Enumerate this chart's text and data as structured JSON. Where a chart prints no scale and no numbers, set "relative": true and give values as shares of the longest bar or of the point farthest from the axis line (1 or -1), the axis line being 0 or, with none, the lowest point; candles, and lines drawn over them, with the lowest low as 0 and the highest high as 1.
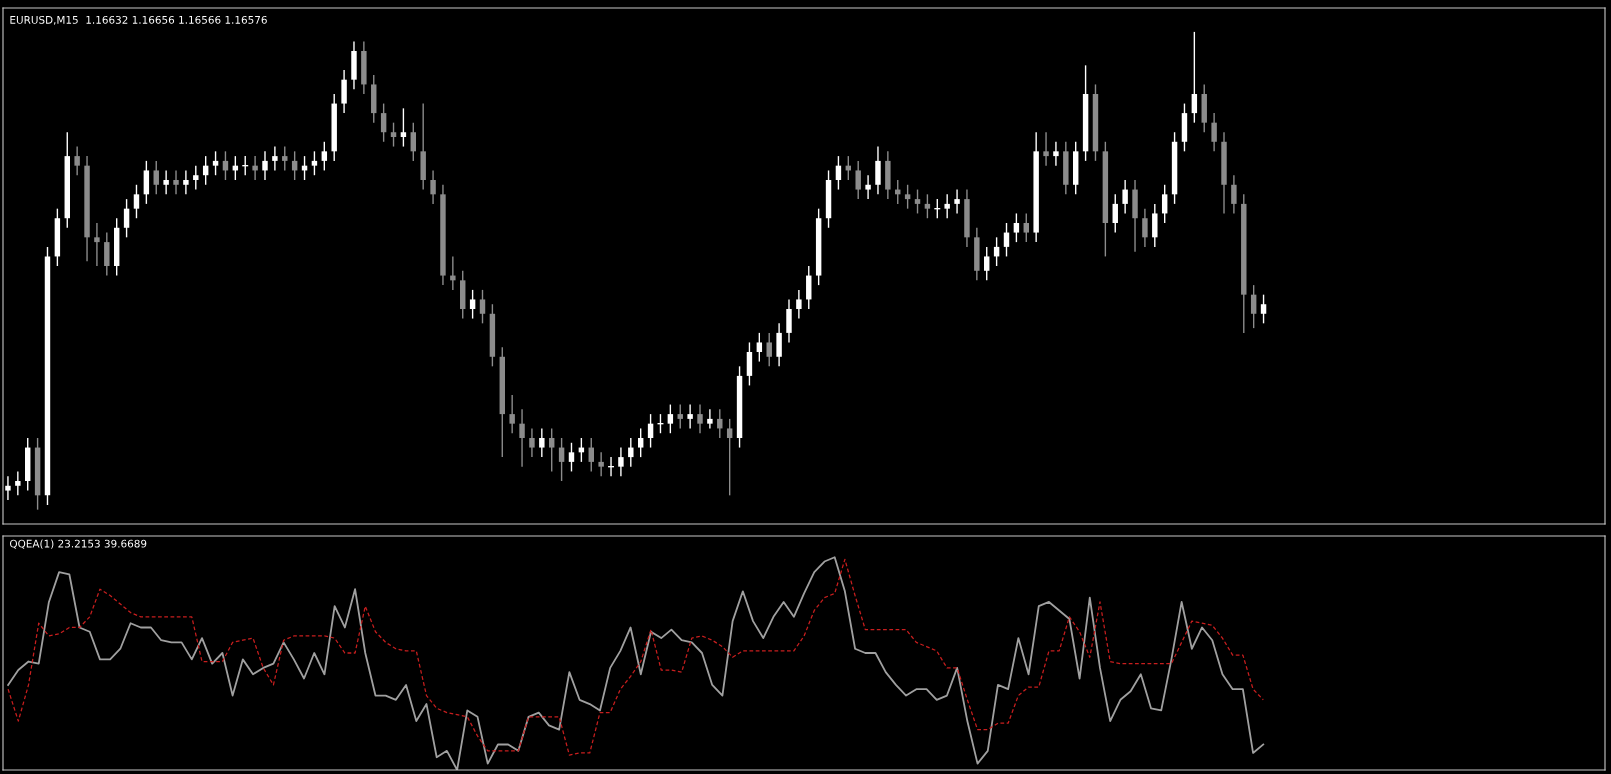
{
  "chart_data": [
    {
      "type": "candlestick",
      "title": "EURUSD,M15  1.16632 1.16656 1.16566 1.16576",
      "relative": true,
      "colors": [
        "#ffffff",
        "#ffffff",
        "#ffffff",
        "#8c8c8c",
        "#ffffff",
        "#ffffff",
        "#ffffff",
        "#8c8c8c",
        "#8c8c8c",
        "#8c8c8c",
        "#8c8c8c",
        "#ffffff",
        "#ffffff",
        "#ffffff",
        "#ffffff",
        "#8c8c8c",
        "#ffffff",
        "#8c8c8c",
        "#ffffff",
        "#ffffff",
        "#ffffff",
        "#ffffff",
        "#8c8c8c",
        "#ffffff",
        "#ffffff",
        "#8c8c8c",
        "#ffffff",
        "#ffffff",
        "#8c8c8c",
        "#8c8c8c",
        "#ffffff",
        "#ffffff",
        "#ffffff",
        "#ffffff",
        "#ffffff",
        "#ffffff",
        "#8c8c8c",
        "#8c8c8c",
        "#8c8c8c",
        "#8c8c8c",
        "#ffffff",
        "#8c8c8c",
        "#8c8c8c",
        "#8c8c8c",
        "#8c8c8c",
        "#8c8c8c",
        "#8c8c8c",
        "#ffffff",
        "#8c8c8c",
        "#8c8c8c",
        "#8c8c8c",
        "#8c8c8c",
        "#8c8c8c",
        "#8c8c8c",
        "#ffffff",
        "#8c8c8c",
        "#8c8c8c",
        "#ffffff",
        "#ffffff",
        "#8c8c8c",
        "#8c8c8c",
        "#ffffff",
        "#ffffff",
        "#ffffff",
        "#ffffff",
        "#ffffff",
        "#ffffff",
        "#ffffff",
        "#8c8c8c",
        "#ffffff",
        "#8c8c8c",
        "#ffffff",
        "#8c8c8c",
        "#8c8c8c",
        "#ffffff",
        "#ffffff",
        "#ffffff",
        "#8c8c8c",
        "#ffffff",
        "#ffffff",
        "#ffffff",
        "#ffffff",
        "#ffffff",
        "#ffffff",
        "#ffffff",
        "#8c8c8c",
        "#8c8c8c",
        "#ffffff",
        "#ffffff",
        "#8c8c8c",
        "#8c8c8c",
        "#8c8c8c",
        "#8c8c8c",
        "#8c8c8c",
        "#ffffff",
        "#ffffff",
        "#ffffff",
        "#8c8c8c",
        "#8c8c8c",
        "#ffffff",
        "#ffffff",
        "#ffffff",
        "#ffffff",
        "#8c8c8c",
        "#ffffff",
        "#8c8c8c",
        "#ffffff",
        "#8c8c8c",
        "#ffffff",
        "#ffffff",
        "#8c8c8c",
        "#8c8c8c",
        "#ffffff",
        "#ffffff",
        "#8c8c8c",
        "#8c8c8c",
        "#ffffff",
        "#ffffff",
        "#ffffff",
        "#ffffff",
        "#ffffff",
        "#8c8c8c",
        "#8c8c8c",
        "#8c8c8c",
        "#8c8c8c",
        "#8c8c8c",
        "#8c8c8c",
        "#ffffff"
      ],
      "categories": [
        null,
        null,
        null,
        null,
        null,
        null,
        null,
        null,
        null,
        null,
        null,
        null,
        null,
        null,
        null,
        null,
        null,
        null,
        null,
        null,
        null,
        null,
        null,
        null,
        null,
        null,
        null,
        null,
        null,
        null,
        null,
        null,
        null,
        null,
        null,
        null,
        null,
        null,
        null,
        null,
        null,
        null,
        null,
        null,
        null,
        null,
        null,
        null,
        null,
        null,
        null,
        null,
        null,
        null,
        null,
        null,
        null,
        null,
        null,
        null,
        null,
        null,
        null,
        null,
        null,
        null,
        null,
        null,
        null,
        null,
        null,
        null,
        null,
        null,
        null,
        null,
        null,
        null,
        null,
        null,
        null,
        null,
        null,
        null,
        null,
        null,
        null,
        null,
        null,
        null,
        null,
        null,
        null,
        null,
        null,
        null,
        null,
        null,
        null,
        null,
        null,
        null,
        null,
        null,
        null,
        null,
        null,
        null,
        null,
        null,
        null,
        null,
        null,
        null,
        null,
        null,
        null,
        null,
        null,
        null,
        null,
        null,
        null,
        null,
        null,
        null,
        null,
        null
      ],
      "ohlc": [
        [
          0.04,
          0.07,
          0.02,
          0.05
        ],
        [
          0.05,
          0.08,
          0.03,
          0.06
        ],
        [
          0.06,
          0.15,
          0.04,
          0.13
        ],
        [
          0.13,
          0.15,
          0.0,
          0.03
        ],
        [
          0.03,
          0.55,
          0.01,
          0.53
        ],
        [
          0.53,
          0.63,
          0.51,
          0.61
        ],
        [
          0.61,
          0.79,
          0.59,
          0.74
        ],
        [
          0.74,
          0.76,
          0.7,
          0.72
        ],
        [
          0.72,
          0.74,
          0.52,
          0.57
        ],
        [
          0.57,
          0.6,
          0.51,
          0.56
        ],
        [
          0.56,
          0.58,
          0.49,
          0.51
        ],
        [
          0.51,
          0.61,
          0.49,
          0.59
        ],
        [
          0.59,
          0.65,
          0.57,
          0.63
        ],
        [
          0.63,
          0.68,
          0.61,
          0.66
        ],
        [
          0.66,
          0.73,
          0.64,
          0.71
        ],
        [
          0.71,
          0.73,
          0.66,
          0.68
        ],
        [
          0.68,
          0.71,
          0.66,
          0.69
        ],
        [
          0.69,
          0.71,
          0.66,
          0.68
        ],
        [
          0.68,
          0.71,
          0.66,
          0.69
        ],
        [
          0.69,
          0.72,
          0.67,
          0.7
        ],
        [
          0.7,
          0.74,
          0.68,
          0.72
        ],
        [
          0.72,
          0.75,
          0.7,
          0.73
        ],
        [
          0.73,
          0.75,
          0.69,
          0.71
        ],
        [
          0.71,
          0.74,
          0.69,
          0.72
        ],
        [
          0.72,
          0.74,
          0.7,
          0.72
        ],
        [
          0.72,
          0.74,
          0.69,
          0.71
        ],
        [
          0.71,
          0.75,
          0.69,
          0.73
        ],
        [
          0.73,
          0.76,
          0.71,
          0.74
        ],
        [
          0.74,
          0.76,
          0.71,
          0.73
        ],
        [
          0.73,
          0.75,
          0.69,
          0.71
        ],
        [
          0.71,
          0.74,
          0.69,
          0.72
        ],
        [
          0.72,
          0.75,
          0.7,
          0.73
        ],
        [
          0.73,
          0.77,
          0.71,
          0.75
        ],
        [
          0.75,
          0.87,
          0.73,
          0.85
        ],
        [
          0.85,
          0.92,
          0.83,
          0.9
        ],
        [
          0.9,
          0.98,
          0.88,
          0.96
        ],
        [
          0.96,
          0.98,
          0.87,
          0.89
        ],
        [
          0.89,
          0.91,
          0.81,
          0.83
        ],
        [
          0.83,
          0.85,
          0.77,
          0.79
        ],
        [
          0.79,
          0.81,
          0.76,
          0.78
        ],
        [
          0.78,
          0.84,
          0.76,
          0.79
        ],
        [
          0.79,
          0.81,
          0.73,
          0.75
        ],
        [
          0.75,
          0.85,
          0.67,
          0.69
        ],
        [
          0.69,
          0.71,
          0.64,
          0.66
        ],
        [
          0.66,
          0.68,
          0.47,
          0.49
        ],
        [
          0.49,
          0.53,
          0.46,
          0.48
        ],
        [
          0.48,
          0.5,
          0.4,
          0.42
        ],
        [
          0.42,
          0.46,
          0.4,
          0.44
        ],
        [
          0.44,
          0.46,
          0.39,
          0.41
        ],
        [
          0.41,
          0.43,
          0.3,
          0.32
        ],
        [
          0.32,
          0.34,
          0.11,
          0.2
        ],
        [
          0.2,
          0.24,
          0.16,
          0.18
        ],
        [
          0.18,
          0.21,
          0.09,
          0.15
        ],
        [
          0.15,
          0.17,
          0.11,
          0.13
        ],
        [
          0.13,
          0.17,
          0.11,
          0.15
        ],
        [
          0.15,
          0.17,
          0.08,
          0.13
        ],
        [
          0.13,
          0.15,
          0.06,
          0.1
        ],
        [
          0.1,
          0.14,
          0.08,
          0.12
        ],
        [
          0.12,
          0.15,
          0.1,
          0.13
        ],
        [
          0.13,
          0.15,
          0.08,
          0.1
        ],
        [
          0.1,
          0.12,
          0.07,
          0.09
        ],
        [
          0.09,
          0.11,
          0.07,
          0.09
        ],
        [
          0.09,
          0.13,
          0.07,
          0.11
        ],
        [
          0.11,
          0.15,
          0.09,
          0.13
        ],
        [
          0.13,
          0.17,
          0.11,
          0.15
        ],
        [
          0.15,
          0.2,
          0.13,
          0.18
        ],
        [
          0.18,
          0.2,
          0.16,
          0.18
        ],
        [
          0.18,
          0.22,
          0.16,
          0.2
        ],
        [
          0.2,
          0.22,
          0.17,
          0.19
        ],
        [
          0.19,
          0.22,
          0.17,
          0.2
        ],
        [
          0.2,
          0.22,
          0.16,
          0.18
        ],
        [
          0.18,
          0.21,
          0.17,
          0.19
        ],
        [
          0.19,
          0.21,
          0.15,
          0.17
        ],
        [
          0.17,
          0.19,
          0.03,
          0.15
        ],
        [
          0.15,
          0.3,
          0.13,
          0.28
        ],
        [
          0.28,
          0.35,
          0.26,
          0.33
        ],
        [
          0.33,
          0.37,
          0.31,
          0.35
        ],
        [
          0.35,
          0.37,
          0.3,
          0.32
        ],
        [
          0.32,
          0.39,
          0.3,
          0.37
        ],
        [
          0.37,
          0.44,
          0.35,
          0.42
        ],
        [
          0.42,
          0.46,
          0.4,
          0.44
        ],
        [
          0.44,
          0.51,
          0.42,
          0.49
        ],
        [
          0.49,
          0.63,
          0.47,
          0.61
        ],
        [
          0.61,
          0.71,
          0.59,
          0.69
        ],
        [
          0.69,
          0.74,
          0.67,
          0.72
        ],
        [
          0.72,
          0.74,
          0.69,
          0.71
        ],
        [
          0.71,
          0.73,
          0.65,
          0.67
        ],
        [
          0.67,
          0.7,
          0.65,
          0.68
        ],
        [
          0.68,
          0.76,
          0.66,
          0.73
        ],
        [
          0.73,
          0.75,
          0.65,
          0.67
        ],
        [
          0.67,
          0.69,
          0.64,
          0.66
        ],
        [
          0.66,
          0.68,
          0.63,
          0.65
        ],
        [
          0.65,
          0.67,
          0.62,
          0.64
        ],
        [
          0.64,
          0.66,
          0.61,
          0.63
        ],
        [
          0.63,
          0.65,
          0.61,
          0.63
        ],
        [
          0.63,
          0.66,
          0.61,
          0.64
        ],
        [
          0.64,
          0.67,
          0.62,
          0.65
        ],
        [
          0.65,
          0.67,
          0.55,
          0.57
        ],
        [
          0.57,
          0.59,
          0.48,
          0.5
        ],
        [
          0.5,
          0.55,
          0.48,
          0.53
        ],
        [
          0.53,
          0.57,
          0.51,
          0.55
        ],
        [
          0.55,
          0.6,
          0.53,
          0.58
        ],
        [
          0.58,
          0.62,
          0.56,
          0.6
        ],
        [
          0.6,
          0.62,
          0.56,
          0.58
        ],
        [
          0.58,
          0.79,
          0.56,
          0.75
        ],
        [
          0.75,
          0.79,
          0.72,
          0.74
        ],
        [
          0.74,
          0.77,
          0.72,
          0.75
        ],
        [
          0.75,
          0.77,
          0.66,
          0.68
        ],
        [
          0.68,
          0.77,
          0.66,
          0.75
        ],
        [
          0.75,
          0.93,
          0.73,
          0.87
        ],
        [
          0.87,
          0.89,
          0.73,
          0.75
        ],
        [
          0.75,
          0.77,
          0.53,
          0.6
        ],
        [
          0.6,
          0.66,
          0.58,
          0.64
        ],
        [
          0.64,
          0.69,
          0.62,
          0.67
        ],
        [
          0.67,
          0.69,
          0.54,
          0.61
        ],
        [
          0.61,
          0.63,
          0.55,
          0.57
        ],
        [
          0.57,
          0.64,
          0.55,
          0.62
        ],
        [
          0.62,
          0.68,
          0.6,
          0.66
        ],
        [
          0.66,
          0.79,
          0.64,
          0.77
        ],
        [
          0.77,
          0.85,
          0.75,
          0.83
        ],
        [
          0.83,
          1.0,
          0.81,
          0.87
        ],
        [
          0.87,
          0.89,
          0.79,
          0.81
        ],
        [
          0.81,
          0.83,
          0.75,
          0.77
        ],
        [
          0.77,
          0.79,
          0.62,
          0.68
        ],
        [
          0.68,
          0.7,
          0.62,
          0.64
        ],
        [
          0.64,
          0.66,
          0.37,
          0.45
        ],
        [
          0.45,
          0.47,
          0.38,
          0.41
        ],
        [
          0.41,
          0.45,
          0.39,
          0.43
        ]
      ]
    },
    {
      "type": "line",
      "title": "QQEA(1) 23.2153 39.6689",
      "relative": true,
      "categories": [
        null,
        null,
        null,
        null,
        null,
        null,
        null,
        null,
        null,
        null,
        null,
        null,
        null,
        null,
        null,
        null,
        null,
        null,
        null,
        null,
        null,
        null,
        null,
        null,
        null,
        null,
        null,
        null,
        null,
        null,
        null,
        null,
        null,
        null,
        null,
        null,
        null,
        null,
        null,
        null,
        null,
        null,
        null,
        null,
        null,
        null,
        null,
        null,
        null,
        null,
        null,
        null,
        null,
        null,
        null,
        null,
        null,
        null,
        null,
        null,
        null,
        null,
        null,
        null,
        null,
        null,
        null,
        null,
        null,
        null,
        null,
        null,
        null,
        null,
        null,
        null,
        null,
        null,
        null,
        null,
        null,
        null,
        null,
        null,
        null,
        null,
        null,
        null,
        null,
        null,
        null,
        null,
        null,
        null,
        null,
        null,
        null,
        null,
        null,
        null,
        null,
        null,
        null,
        null,
        null,
        null,
        null,
        null,
        null,
        null,
        null,
        null,
        null,
        null,
        null,
        null,
        null,
        null,
        null,
        null,
        null,
        null,
        null,
        null
      ],
      "series": [
        {
          "color": "#a0a0a0",
          "line_style": "solid",
          "values": [
            0.4,
            0.47,
            0.51,
            0.5,
            0.79,
            0.93,
            0.92,
            0.67,
            0.65,
            0.52,
            0.52,
            0.57,
            0.69,
            0.67,
            0.67,
            0.61,
            0.6,
            0.6,
            0.52,
            0.62,
            0.5,
            0.55,
            0.35,
            0.52,
            0.45,
            0.48,
            0.5,
            0.6,
            0.52,
            0.43,
            0.55,
            0.45,
            0.77,
            0.67,
            0.85,
            0.55,
            0.35,
            0.35,
            0.33,
            0.4,
            0.23,
            0.31,
            0.06,
            0.09,
            0.0,
            0.28,
            0.25,
            0.03,
            0.12,
            0.12,
            0.09,
            0.25,
            0.27,
            0.21,
            0.19,
            0.46,
            0.33,
            0.31,
            0.28,
            0.48,
            0.56,
            0.67,
            0.45,
            0.65,
            0.62,
            0.66,
            0.61,
            0.6,
            0.55,
            0.4,
            0.35,
            0.7,
            0.84,
            0.7,
            0.62,
            0.72,
            0.79,
            0.72,
            0.83,
            0.93,
            0.98,
            1.0,
            0.84,
            0.57,
            0.55,
            0.55,
            0.46,
            0.4,
            0.35,
            0.38,
            0.38,
            0.33,
            0.35,
            0.48,
            0.23,
            0.03,
            0.09,
            0.4,
            0.38,
            0.62,
            0.45,
            0.77,
            0.79,
            0.75,
            0.71,
            0.43,
            0.81,
            0.48,
            0.23,
            0.33,
            0.37,
            0.45,
            0.29,
            0.28,
            0.52,
            0.79,
            0.57,
            0.67,
            0.61,
            0.45,
            0.38,
            0.38,
            0.08,
            0.12
          ]
        },
        {
          "color": "#c81e1e",
          "line_style": "dashed",
          "values": [
            0.38,
            0.23,
            0.4,
            0.69,
            0.63,
            0.64,
            0.67,
            0.67,
            0.72,
            0.85,
            0.82,
            0.78,
            0.74,
            0.72,
            0.72,
            0.72,
            0.72,
            0.72,
            0.72,
            0.51,
            0.51,
            0.51,
            0.6,
            0.61,
            0.62,
            0.48,
            0.4,
            0.61,
            0.63,
            0.63,
            0.63,
            0.63,
            0.62,
            0.55,
            0.55,
            0.77,
            0.65,
            0.6,
            0.57,
            0.56,
            0.56,
            0.35,
            0.29,
            0.27,
            0.26,
            0.25,
            0.16,
            0.09,
            0.09,
            0.09,
            0.09,
            0.25,
            0.25,
            0.25,
            0.25,
            0.07,
            0.08,
            0.08,
            0.27,
            0.27,
            0.38,
            0.44,
            0.51,
            0.66,
            0.47,
            0.47,
            0.46,
            0.62,
            0.63,
            0.61,
            0.58,
            0.53,
            0.56,
            0.56,
            0.56,
            0.56,
            0.56,
            0.56,
            0.63,
            0.75,
            0.81,
            0.83,
            0.99,
            0.82,
            0.66,
            0.66,
            0.66,
            0.66,
            0.66,
            0.6,
            0.58,
            0.56,
            0.48,
            0.48,
            0.33,
            0.19,
            0.19,
            0.22,
            0.22,
            0.35,
            0.39,
            0.39,
            0.56,
            0.56,
            0.72,
            0.65,
            0.53,
            0.79,
            0.51,
            0.5,
            0.5,
            0.5,
            0.5,
            0.5,
            0.5,
            0.6,
            0.7,
            0.69,
            0.68,
            0.62,
            0.54,
            0.54,
            0.38,
            0.33
          ]
        }
      ]
    }
  ]
}
